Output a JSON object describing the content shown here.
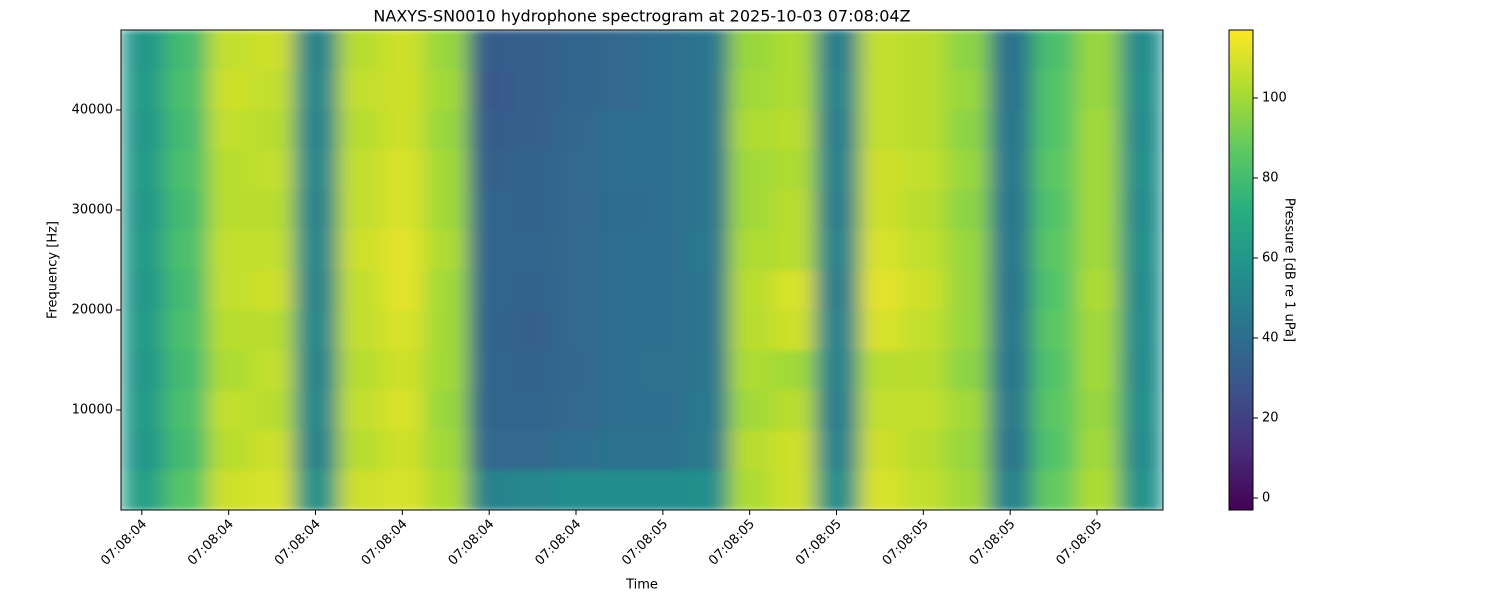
{
  "chart_data": {
    "type": "heatmap",
    "title": "NAXYS-SN0010 hydrophone spectrogram at 2025-10-03 07:08:04Z",
    "xlabel": "Time",
    "ylabel": "Frequency [Hz]",
    "colorbar_label": "Pressure [dB re 1 uPa]",
    "colormap": "viridis",
    "xlim": [
      4.376,
      5.576
    ],
    "ylim": [
      0,
      48000
    ],
    "clim": [
      -3,
      117
    ],
    "xticks": [
      {
        "value": 4.4,
        "label": "07:08:04"
      },
      {
        "value": 4.5,
        "label": "07:08:04"
      },
      {
        "value": 4.6,
        "label": "07:08:04"
      },
      {
        "value": 4.7,
        "label": "07:08:04"
      },
      {
        "value": 4.8,
        "label": "07:08:04"
      },
      {
        "value": 4.9,
        "label": "07:08:04"
      },
      {
        "value": 5.0,
        "label": "07:08:05"
      },
      {
        "value": 5.1,
        "label": "07:08:05"
      },
      {
        "value": 5.2,
        "label": "07:08:05"
      },
      {
        "value": 5.3,
        "label": "07:08:05"
      },
      {
        "value": 5.4,
        "label": "07:08:05"
      },
      {
        "value": 5.5,
        "label": "07:08:05"
      }
    ],
    "yticks": [
      10000,
      20000,
      30000,
      40000
    ],
    "colorbar_ticks": [
      0,
      20,
      40,
      60,
      80,
      100
    ],
    "x_edges": [
      4.376,
      4.426,
      4.476,
      4.526,
      4.576,
      4.626,
      4.676,
      4.726,
      4.776,
      4.826,
      4.876,
      4.926,
      4.976,
      5.026,
      5.076,
      5.126,
      5.176,
      5.226,
      5.276,
      5.326,
      5.376,
      5.426,
      5.476,
      5.526,
      5.576
    ],
    "y_edges": [
      0,
      4000,
      8000,
      12000,
      16000,
      20000,
      24000,
      28000,
      32000,
      36000,
      40000,
      44000,
      48000
    ],
    "z": [
      [
        65,
        85,
        108,
        110,
        58,
        108,
        110,
        102,
        50,
        52,
        55,
        55,
        55,
        56,
        102,
        108,
        56,
        110,
        106,
        100,
        50,
        88,
        102,
        58
      ],
      [
        60,
        80,
        104,
        108,
        50,
        104,
        108,
        100,
        38,
        38,
        40,
        42,
        42,
        46,
        104,
        108,
        50,
        108,
        104,
        98,
        44,
        84,
        100,
        54
      ],
      [
        62,
        82,
        106,
        104,
        52,
        106,
        110,
        98,
        36,
        36,
        38,
        40,
        40,
        45,
        100,
        104,
        48,
        106,
        106,
        100,
        46,
        86,
        98,
        56
      ],
      [
        60,
        80,
        102,
        106,
        50,
        104,
        108,
        100,
        36,
        35,
        37,
        40,
        41,
        44,
        102,
        100,
        50,
        104,
        104,
        96,
        44,
        84,
        100,
        54
      ],
      [
        62,
        82,
        104,
        104,
        52,
        106,
        110,
        100,
        35,
        34,
        38,
        40,
        40,
        44,
        104,
        108,
        50,
        110,
        106,
        98,
        45,
        86,
        100,
        55
      ],
      [
        60,
        80,
        106,
        108,
        50,
        106,
        112,
        100,
        36,
        35,
        38,
        40,
        40,
        44,
        104,
        110,
        48,
        112,
        108,
        98,
        44,
        84,
        102,
        54
      ],
      [
        62,
        82,
        106,
        106,
        52,
        108,
        112,
        102,
        36,
        36,
        38,
        40,
        40,
        45,
        102,
        104,
        50,
        110,
        106,
        98,
        45,
        86,
        100,
        56
      ],
      [
        60,
        80,
        104,
        104,
        50,
        106,
        110,
        100,
        36,
        35,
        38,
        39,
        40,
        44,
        100,
        104,
        48,
        108,
        104,
        96,
        44,
        84,
        100,
        54
      ],
      [
        62,
        82,
        104,
        106,
        52,
        106,
        110,
        100,
        34,
        35,
        38,
        40,
        40,
        44,
        100,
        102,
        50,
        108,
        106,
        98,
        45,
        86,
        100,
        56
      ],
      [
        60,
        80,
        106,
        104,
        50,
        104,
        108,
        98,
        32,
        34,
        37,
        40,
        40,
        44,
        102,
        104,
        48,
        106,
        104,
        96,
        44,
        84,
        100,
        54
      ],
      [
        62,
        82,
        108,
        106,
        52,
        106,
        108,
        100,
        30,
        34,
        36,
        38,
        40,
        44,
        100,
        102,
        50,
        106,
        104,
        98,
        42,
        84,
        98,
        56
      ],
      [
        60,
        80,
        106,
        108,
        50,
        104,
        108,
        98,
        32,
        34,
        36,
        38,
        40,
        44,
        98,
        102,
        48,
        106,
        104,
        96,
        42,
        82,
        98,
        54
      ]
    ]
  }
}
